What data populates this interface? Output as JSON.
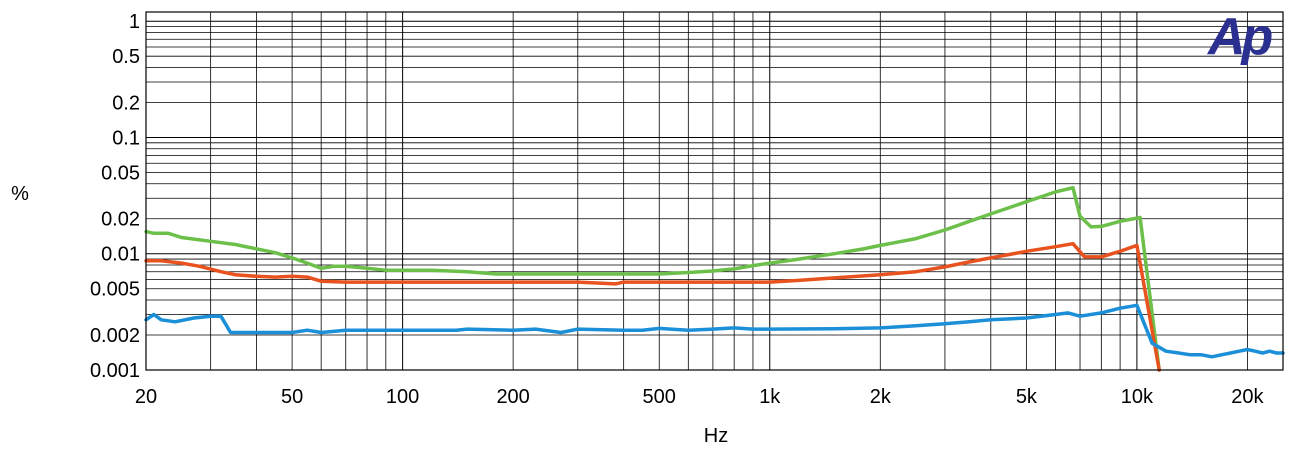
{
  "chart_data": {
    "type": "line",
    "x_scale": "log",
    "y_scale": "log",
    "xlabel": "Hz",
    "ylabel": "%",
    "xlim": [
      20,
      25000
    ],
    "ylim": [
      0.001,
      1.2
    ],
    "grid": true,
    "x_ticks": [
      {
        "value": 20,
        "label": "20"
      },
      {
        "value": 50,
        "label": "50"
      },
      {
        "value": 100,
        "label": "100"
      },
      {
        "value": 200,
        "label": "200"
      },
      {
        "value": 500,
        "label": "500"
      },
      {
        "value": 1000,
        "label": "1k"
      },
      {
        "value": 2000,
        "label": "2k"
      },
      {
        "value": 5000,
        "label": "5k"
      },
      {
        "value": 10000,
        "label": "10k"
      },
      {
        "value": 20000,
        "label": "20k"
      }
    ],
    "y_ticks": [
      {
        "value": 1,
        "label": "1"
      },
      {
        "value": 0.5,
        "label": "0.5"
      },
      {
        "value": 0.2,
        "label": "0.2"
      },
      {
        "value": 0.1,
        "label": "0.1"
      },
      {
        "value": 0.05,
        "label": "0.05"
      },
      {
        "value": 0.02,
        "label": "0.02"
      },
      {
        "value": 0.01,
        "label": "0.01"
      },
      {
        "value": 0.005,
        "label": "0.005"
      },
      {
        "value": 0.002,
        "label": "0.002"
      },
      {
        "value": 0.001,
        "label": "0.001"
      }
    ],
    "logo": "Ap",
    "series": [
      {
        "color": "#6cc04a",
        "points": [
          [
            20,
            0.0155
          ],
          [
            21,
            0.015
          ],
          [
            23,
            0.015
          ],
          [
            25,
            0.0138
          ],
          [
            30,
            0.0128
          ],
          [
            35,
            0.012
          ],
          [
            40,
            0.011
          ],
          [
            45,
            0.0102
          ],
          [
            50,
            0.0092
          ],
          [
            55,
            0.0083
          ],
          [
            60,
            0.0075
          ],
          [
            65,
            0.0078
          ],
          [
            70,
            0.0078
          ],
          [
            80,
            0.0075
          ],
          [
            90,
            0.0072
          ],
          [
            100,
            0.0072
          ],
          [
            120,
            0.0072
          ],
          [
            150,
            0.007
          ],
          [
            180,
            0.0067
          ],
          [
            200,
            0.0067
          ],
          [
            300,
            0.0067
          ],
          [
            400,
            0.0067
          ],
          [
            500,
            0.0067
          ],
          [
            600,
            0.0069
          ],
          [
            700,
            0.0071
          ],
          [
            800,
            0.0074
          ],
          [
            900,
            0.0079
          ],
          [
            1000,
            0.0083
          ],
          [
            1200,
            0.009
          ],
          [
            1500,
            0.01
          ],
          [
            1800,
            0.011
          ],
          [
            2000,
            0.0118
          ],
          [
            2500,
            0.0135
          ],
          [
            3000,
            0.016
          ],
          [
            3500,
            0.019
          ],
          [
            4000,
            0.022
          ],
          [
            4500,
            0.025
          ],
          [
            5000,
            0.028
          ],
          [
            5500,
            0.031
          ],
          [
            6000,
            0.034
          ],
          [
            6700,
            0.037
          ],
          [
            7000,
            0.021
          ],
          [
            7500,
            0.017
          ],
          [
            8000,
            0.0172
          ],
          [
            9000,
            0.019
          ],
          [
            10200,
            0.0205
          ],
          [
            11500,
            0.001
          ]
        ]
      },
      {
        "color": "#e8521e",
        "points": [
          [
            20,
            0.0087
          ],
          [
            22,
            0.0087
          ],
          [
            25,
            0.0083
          ],
          [
            28,
            0.0078
          ],
          [
            32,
            0.007
          ],
          [
            35,
            0.0066
          ],
          [
            40,
            0.0064
          ],
          [
            45,
            0.0063
          ],
          [
            50,
            0.0064
          ],
          [
            55,
            0.0063
          ],
          [
            60,
            0.0058
          ],
          [
            70,
            0.0057
          ],
          [
            100,
            0.0057
          ],
          [
            200,
            0.0057
          ],
          [
            300,
            0.0057
          ],
          [
            380,
            0.0055
          ],
          [
            400,
            0.0057
          ],
          [
            500,
            0.0057
          ],
          [
            700,
            0.0057
          ],
          [
            1000,
            0.0057
          ],
          [
            1200,
            0.0059
          ],
          [
            1500,
            0.0062
          ],
          [
            2000,
            0.0066
          ],
          [
            2500,
            0.007
          ],
          [
            3000,
            0.0077
          ],
          [
            3500,
            0.0085
          ],
          [
            4000,
            0.0092
          ],
          [
            5000,
            0.0105
          ],
          [
            6000,
            0.0115
          ],
          [
            6700,
            0.0122
          ],
          [
            7200,
            0.0094
          ],
          [
            8000,
            0.0094
          ],
          [
            9000,
            0.0105
          ],
          [
            10000,
            0.0118
          ],
          [
            11500,
            0.001
          ]
        ]
      },
      {
        "color": "#1b8fd8",
        "points": [
          [
            20,
            0.0027
          ],
          [
            21,
            0.003
          ],
          [
            22,
            0.0027
          ],
          [
            24,
            0.0026
          ],
          [
            27,
            0.0028
          ],
          [
            30,
            0.0029
          ],
          [
            32,
            0.0029
          ],
          [
            34,
            0.0021
          ],
          [
            40,
            0.0021
          ],
          [
            50,
            0.0021
          ],
          [
            55,
            0.0022
          ],
          [
            60,
            0.0021
          ],
          [
            70,
            0.0022
          ],
          [
            100,
            0.0022
          ],
          [
            140,
            0.0022
          ],
          [
            150,
            0.00225
          ],
          [
            200,
            0.0022
          ],
          [
            230,
            0.00225
          ],
          [
            270,
            0.0021
          ],
          [
            300,
            0.00225
          ],
          [
            400,
            0.0022
          ],
          [
            450,
            0.0022
          ],
          [
            500,
            0.00228
          ],
          [
            600,
            0.0022
          ],
          [
            700,
            0.00225
          ],
          [
            800,
            0.0023
          ],
          [
            900,
            0.00225
          ],
          [
            1000,
            0.00225
          ],
          [
            1500,
            0.00226
          ],
          [
            2000,
            0.0023
          ],
          [
            2500,
            0.0024
          ],
          [
            3000,
            0.0025
          ],
          [
            3500,
            0.0026
          ],
          [
            4000,
            0.0027
          ],
          [
            5000,
            0.0028
          ],
          [
            6000,
            0.003
          ],
          [
            6500,
            0.0031
          ],
          [
            7000,
            0.0029
          ],
          [
            8000,
            0.0031
          ],
          [
            9000,
            0.0034
          ],
          [
            10000,
            0.0036
          ],
          [
            11000,
            0.0017
          ],
          [
            12000,
            0.00145
          ],
          [
            13000,
            0.0014
          ],
          [
            14000,
            0.00135
          ],
          [
            15000,
            0.00135
          ],
          [
            16000,
            0.0013
          ],
          [
            17000,
            0.00135
          ],
          [
            18000,
            0.0014
          ],
          [
            19000,
            0.00145
          ],
          [
            20000,
            0.0015
          ],
          [
            21000,
            0.00145
          ],
          [
            22000,
            0.0014
          ],
          [
            23000,
            0.00145
          ],
          [
            24000,
            0.0014
          ],
          [
            25000,
            0.0014
          ]
        ]
      }
    ]
  }
}
